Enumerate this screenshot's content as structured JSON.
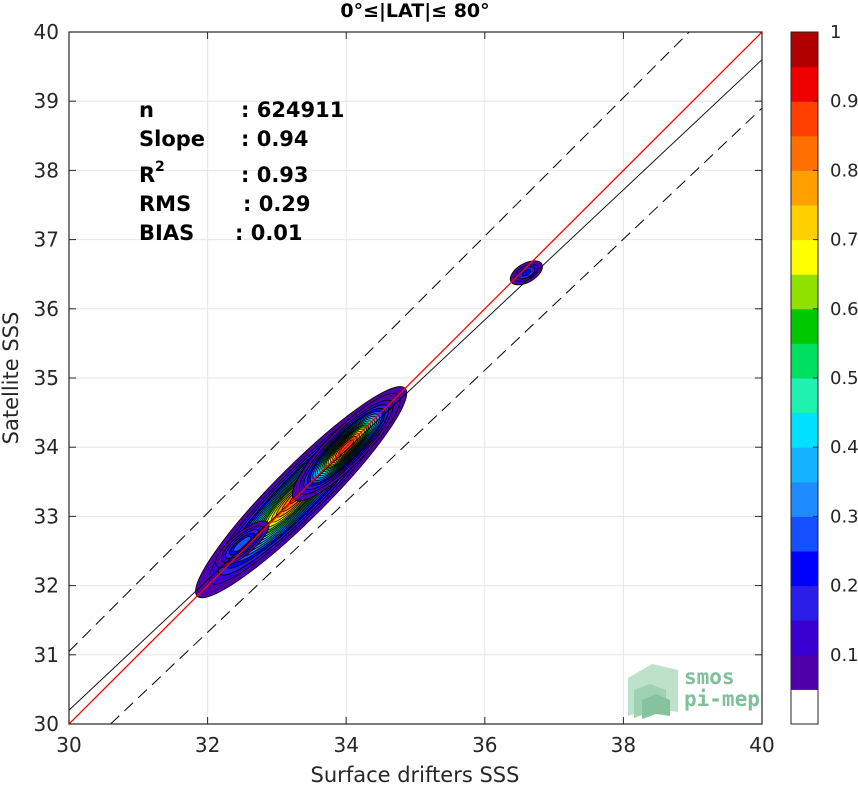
{
  "chart_data": {
    "type": "heatmap",
    "title": "0°≤|LAT|≤ 80°",
    "xlabel": "Surface drifters SSS",
    "ylabel": "Satellite SSS",
    "xlim": [
      30,
      40
    ],
    "ylim": [
      30,
      40
    ],
    "xticks": [
      "30",
      "32",
      "34",
      "36",
      "38",
      "40"
    ],
    "yticks": [
      "30",
      "31",
      "32",
      "33",
      "34",
      "35",
      "36",
      "37",
      "38",
      "39",
      "40"
    ],
    "grid": true,
    "stats": {
      "n_label": "n",
      "n_value": ": 624911",
      "slope_label": "Slope",
      "slope_value": ": 0.94",
      "r2_label": "R",
      "r2_sup": "2",
      "r2_value": ": 0.93",
      "rms_label": "RMS",
      "rms_value": ": 0.29",
      "bias_label": "BIAS",
      "bias_value": ": 0.01"
    },
    "lines": {
      "identity": {
        "color": "#ff0000",
        "points": [
          [
            30,
            30
          ],
          [
            40,
            40
          ]
        ]
      },
      "regression": {
        "color": "#000000",
        "slope": 0.94,
        "intercept": 2.0
      },
      "upper_bound": {
        "color": "#000000",
        "dash": true,
        "points": [
          [
            30,
            31.05
          ],
          [
            38.95,
            40
          ]
        ]
      },
      "lower_bound": {
        "color": "#000000",
        "dash": true,
        "points": [
          [
            30.6,
            30
          ],
          [
            40,
            38.9
          ]
        ]
      }
    },
    "density_clusters": [
      {
        "cx": 33.35,
        "cy": 33.35,
        "along": 1.9,
        "across": 0.34,
        "angle_deg": 45,
        "peak": 0.88
      },
      {
        "cx": 34.0,
        "cy": 34.0,
        "along": 0.95,
        "across": 0.24,
        "angle_deg": 45,
        "peak": 0.9
      },
      {
        "cx": 32.5,
        "cy": 32.6,
        "along": 0.55,
        "across": 0.18,
        "angle_deg": 40,
        "peak": 0.3
      },
      {
        "cx": 36.6,
        "cy": 36.52,
        "along": 0.32,
        "across": 0.17,
        "angle_deg": 30,
        "peak": 0.22
      }
    ],
    "colorbar": {
      "ticks": [
        "0.1",
        "0.2",
        "0.3",
        "0.4",
        "0.5",
        "0.6",
        "0.7",
        "0.8",
        "0.9",
        "1"
      ],
      "levels": [
        0.05,
        0.1,
        0.15,
        0.2,
        0.25,
        0.3,
        0.35,
        0.4,
        0.45,
        0.5,
        0.55,
        0.6,
        0.65,
        0.7,
        0.75,
        0.8,
        0.85,
        0.9,
        0.95,
        1.0
      ],
      "colors": [
        "#ffffff",
        "#5000a8",
        "#3a00d0",
        "#2a1ee8",
        "#0000ff",
        "#1450ff",
        "#1e8cff",
        "#14b4ff",
        "#00e0ff",
        "#20f0b0",
        "#00e060",
        "#00c800",
        "#90e000",
        "#ffff00",
        "#ffd000",
        "#ffa000",
        "#ff7000",
        "#ff4000",
        "#ee0000",
        "#b00000",
        "#800000"
      ]
    },
    "logo": {
      "line1": "smos",
      "line2": "pi-mep"
    }
  }
}
